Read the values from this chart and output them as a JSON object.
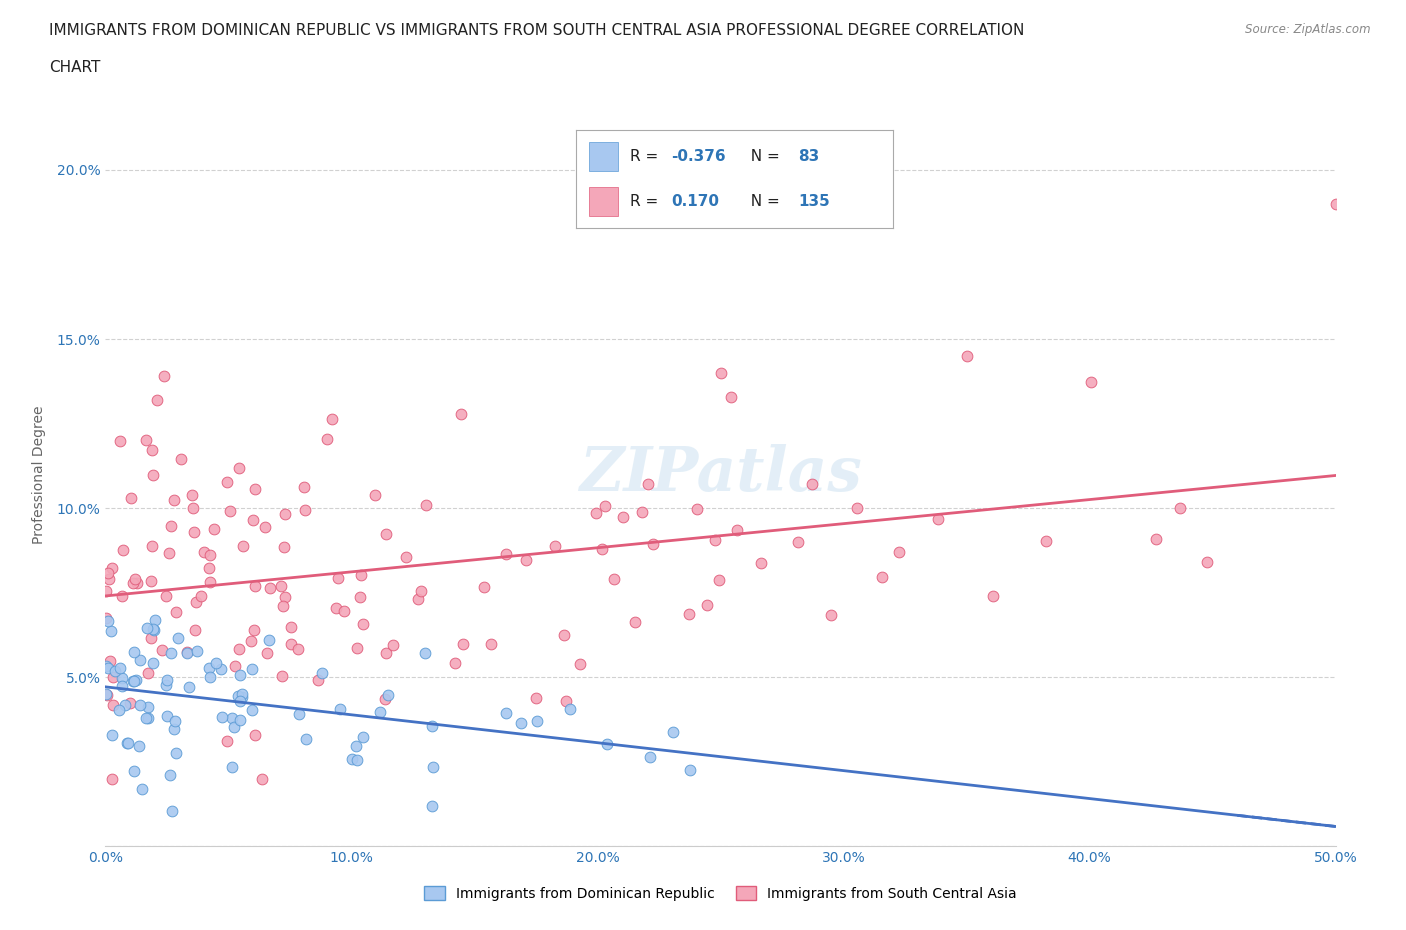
{
  "title_line1": "IMMIGRANTS FROM DOMINICAN REPUBLIC VS IMMIGRANTS FROM SOUTH CENTRAL ASIA PROFESSIONAL DEGREE CORRELATION",
  "title_line2": "CHART",
  "source": "Source: ZipAtlas.com",
  "ylabel": "Professional Degree",
  "x_min": 0.0,
  "x_max": 0.5,
  "y_min": 0.0,
  "y_max": 0.22,
  "series1_color": "#a8c8f0",
  "series1_edge": "#5b9bd5",
  "series1_label": "Immigrants from Dominican Republic",
  "series1_R": "-0.376",
  "series1_N": "83",
  "series1_trend_color": "#4472c4",
  "series2_color": "#f4a7b9",
  "series2_edge": "#e05c7a",
  "series2_label": "Immigrants from South Central Asia",
  "series2_R": "0.170",
  "series2_N": "135",
  "series2_trend_color": "#e05c7a",
  "legend_R_color": "#2e75b6",
  "watermark": "ZIPatlas",
  "background_color": "#ffffff",
  "grid_color": "#cccccc",
  "title_fontsize": 11,
  "axis_label_fontsize": 10,
  "tick_fontsize": 10
}
